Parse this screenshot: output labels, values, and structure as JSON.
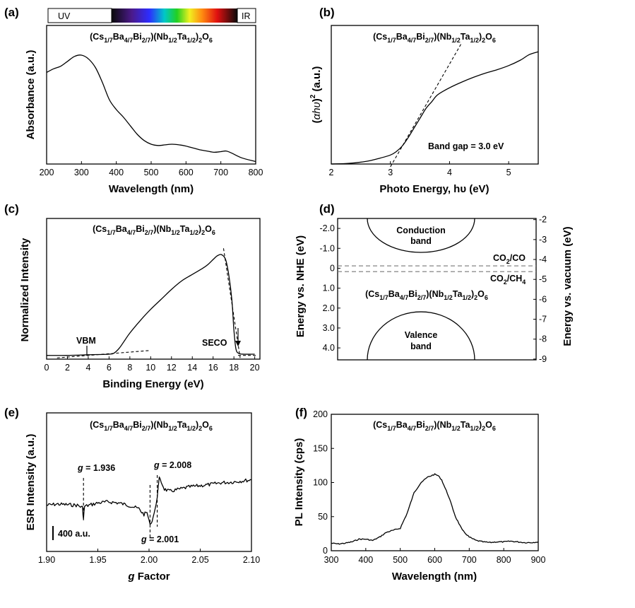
{
  "formula": {
    "pre": "(Cs",
    "s1": "1/7",
    "t1": "Ba",
    "s2": "4/7",
    "t2": "Bi",
    "s3": "2/7",
    "t3": ")(Nb",
    "s4": "1/2",
    "t4": "Ta",
    "s5": "1/2",
    "t5": ")",
    "s6": "2",
    "t6": "O",
    "s7": "6"
  },
  "chart_data": [
    {
      "panel": "(a)",
      "type": "line",
      "xlabel": "Wavelength (nm)",
      "ylabel": "Absorbance (a.u.)",
      "xlim": [
        200,
        800
      ],
      "ylim": [
        0,
        1
      ],
      "xticks": [
        "200",
        "300",
        "400",
        "500",
        "600",
        "700",
        "800"
      ],
      "spectrum_bar": {
        "uv_label": "UV",
        "ir_label": "IR"
      },
      "series": [
        {
          "x": [
            200,
            220,
            240,
            260,
            280,
            300,
            320,
            340,
            360,
            380,
            400,
            420,
            440,
            460,
            480,
            500,
            520,
            540,
            560,
            580,
            600,
            620,
            640,
            660,
            680,
            700,
            715,
            730,
            760,
            800
          ],
          "y": [
            0.74,
            0.77,
            0.79,
            0.83,
            0.87,
            0.88,
            0.85,
            0.78,
            0.66,
            0.52,
            0.44,
            0.38,
            0.31,
            0.24,
            0.19,
            0.16,
            0.15,
            0.155,
            0.16,
            0.155,
            0.145,
            0.13,
            0.115,
            0.105,
            0.095,
            0.1,
            0.105,
            0.09,
            0.05,
            0.02
          ]
        }
      ]
    },
    {
      "panel": "(b)",
      "type": "line",
      "xlabel": "Photo Energy, hυ (eV)",
      "ylabel_parts": [
        "(",
        "αhυ",
        ")",
        "2",
        " (a.u.)"
      ],
      "xlim": [
        2,
        5.5
      ],
      "ylim": [
        0,
        1
      ],
      "xticks": [
        "2",
        "3",
        "4",
        "5"
      ],
      "annotation": "Band gap = 3.0 eV",
      "series": [
        {
          "x": [
            2,
            2.3,
            2.6,
            2.8,
            3.0,
            3.1,
            3.2,
            3.3,
            3.4,
            3.5,
            3.6,
            3.7,
            3.8,
            4.0,
            4.2,
            4.4,
            4.6,
            4.8,
            5.0,
            5.2,
            5.35,
            5.5
          ],
          "y": [
            0,
            0.005,
            0.02,
            0.04,
            0.065,
            0.09,
            0.13,
            0.19,
            0.26,
            0.33,
            0.4,
            0.45,
            0.5,
            0.55,
            0.59,
            0.625,
            0.655,
            0.68,
            0.71,
            0.75,
            0.79,
            0.81
          ]
        }
      ],
      "tangent": {
        "x": [
          3.0,
          4.2
        ],
        "y": [
          -0.02,
          0.87
        ]
      }
    },
    {
      "panel": "(c)",
      "type": "line",
      "xlabel": "Binding Energy (eV)",
      "ylabel": "Normalized Intensity",
      "xlim": [
        0,
        20.5
      ],
      "ylim": [
        0,
        1
      ],
      "xticks": [
        "0",
        "2",
        "4",
        "6",
        "8",
        "10",
        "12",
        "14",
        "16",
        "18",
        "20"
      ],
      "annotations": {
        "vbm": "VBM",
        "seco": "SECO"
      },
      "series": [
        {
          "x": [
            0,
            2,
            4,
            6,
            6.5,
            7,
            7.5,
            8,
            9,
            10,
            11,
            12,
            13,
            14,
            15,
            15.5,
            16,
            16.4,
            16.8,
            17.2,
            17.5,
            17.8,
            18,
            18.2,
            18.5,
            19,
            20
          ],
          "y": [
            0,
            0,
            0.005,
            0.01,
            0.02,
            0.06,
            0.12,
            0.18,
            0.28,
            0.37,
            0.45,
            0.53,
            0.6,
            0.65,
            0.7,
            0.73,
            0.77,
            0.8,
            0.81,
            0.77,
            0.65,
            0.45,
            0.2,
            0.05,
            0.015,
            0.01,
            0.01
          ]
        }
      ],
      "baseline_fit": {
        "x": [
          1,
          10
        ],
        "y": [
          -0.02,
          0.04
        ]
      },
      "edge_fit": {
        "x": [
          17.0,
          18.6
        ],
        "y": [
          0.86,
          -0.02
        ]
      }
    },
    {
      "panel": "(d)",
      "type": "diagram",
      "ylabel_left": "Energy vs. NHE (eV)",
      "ylabel_right": "Energy vs. vacuum (eV)",
      "ylim_nhe": [
        -2.5,
        4.6
      ],
      "left_ticks": [
        "-2.0",
        "-1.0",
        "0",
        "1.0",
        "2.0",
        "3.0",
        "4.0"
      ],
      "right_ticks": [
        "-2",
        "-3",
        "-4",
        "-5",
        "-6",
        "-7",
        "-8",
        "-9"
      ],
      "conduction_band": [
        "Conduction",
        "band"
      ],
      "valence_band": [
        "Valence",
        "band"
      ],
      "redox": [
        {
          "label": "CO",
          "sub": "2",
          "tail": "/CO",
          "potential": -0.12
        },
        {
          "label": "CO",
          "sub": "2",
          "tail": "/CH",
          "sub2": "4",
          "potential": 0.17
        }
      ]
    },
    {
      "panel": "(e)",
      "type": "line",
      "xlabel_g": "g",
      "xlabel_rest": " Factor",
      "ylabel": "ESR Intensity (a.u.)",
      "xlim": [
        1.9,
        2.1
      ],
      "ylim": [
        -400,
        800
      ],
      "xticks": [
        "1.90",
        "1.95",
        "2.00",
        "2.05",
        "2.10"
      ],
      "scale_bar": "400 a.u.",
      "g_labels": [
        {
          "g": "g",
          "eq": " = 1.936",
          "value": 1.936
        },
        {
          "g": "g",
          "eq": " = 2.008",
          "value": 2.008
        },
        {
          "g": "g",
          "eq": " = 2.001",
          "value": 2.001
        }
      ],
      "series": [
        {
          "x": [
            1.9,
            1.91,
            1.92,
            1.93,
            1.935,
            1.936,
            1.937,
            1.95,
            1.96,
            1.97,
            1.98,
            1.99,
            1.995,
            1.998,
            2.0,
            2.002,
            2.004,
            2.006,
            2.008,
            2.01,
            2.012,
            2.015,
            2.02,
            2.03,
            2.04,
            2.05,
            2.06,
            2.07,
            2.08,
            2.09,
            2.1
          ],
          "y": [
            0,
            10,
            5,
            0,
            -20,
            -120,
            -10,
            20,
            30,
            20,
            0,
            -30,
            -80,
            -60,
            -140,
            -160,
            -100,
            -40,
            80,
            230,
            200,
            140,
            120,
            140,
            160,
            170,
            180,
            195,
            200,
            210,
            220
          ]
        }
      ]
    },
    {
      "panel": "(f)",
      "type": "line",
      "xlabel": "Wavelength (nm)",
      "ylabel": "PL Intensity (cps)",
      "xlim": [
        300,
        900
      ],
      "ylim": [
        0,
        200
      ],
      "xticks": [
        "300",
        "400",
        "500",
        "600",
        "700",
        "800",
        "900"
      ],
      "yticks": [
        "0",
        "50",
        "100",
        "150",
        "200"
      ],
      "series": [
        {
          "x": [
            300,
            320,
            340,
            360,
            380,
            400,
            420,
            440,
            460,
            480,
            500,
            520,
            540,
            560,
            580,
            600,
            610,
            620,
            640,
            660,
            680,
            700,
            720,
            740,
            760,
            780,
            800,
            820,
            840,
            860,
            880,
            900
          ],
          "y": [
            11,
            10,
            11,
            13,
            17,
            17,
            15,
            20,
            27,
            30,
            33,
            55,
            85,
            100,
            108,
            112,
            110,
            104,
            80,
            50,
            30,
            20,
            15,
            13,
            12,
            13,
            13,
            14,
            13,
            12,
            12,
            13
          ]
        }
      ]
    }
  ]
}
